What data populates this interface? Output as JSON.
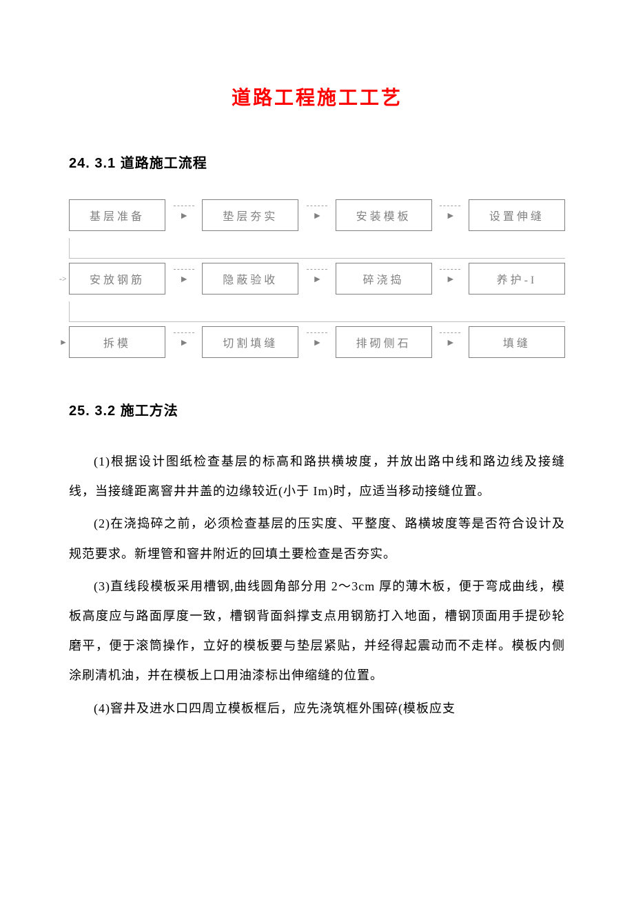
{
  "title": "道路工程施工工艺",
  "section1": {
    "number": "24.",
    "label": "3.1 道路施工流程"
  },
  "section2": {
    "number": "25.",
    "label": "3.2 施工方法"
  },
  "flowchart": {
    "rows": [
      {
        "startMarker": "",
        "boxes": [
          "基层准备",
          "垫层夯实",
          "安装模板",
          "设置伸缝"
        ]
      },
      {
        "startMarker": "->",
        "boxes": [
          "安放钢筋",
          "隐蔽验收",
          "碎浇捣",
          "养护-I"
        ]
      },
      {
        "startMarker": "►",
        "boxes": [
          "拆模",
          "切割填缝",
          "排砌侧石",
          "填缝"
        ]
      }
    ],
    "box_border_color": "#808080",
    "box_text_color": "#808080",
    "dash_color": "#a0a0a0"
  },
  "paragraphs": {
    "p1": "(1)根据设计图纸检查基层的标高和路拱横坡度，并放出路中线和路边线及接缝线，当接缝距离窨井井盖的边缘较近(小于 Im)时，应适当移动接缝位置。",
    "p2": "(2)在浇捣碎之前，必须检查基层的压实度、平整度、路横坡度等是否符合设计及规范要求。新埋管和窨井附近的回填土要检查是否夯实。",
    "p3": "(3)直线段模板采用槽钢,曲线圆角部分用 2～3cm 厚的薄木板，便于弯成曲线，模板高度应与路面厚度一致，槽钢背面斜撑支点用钢筋打入地面，槽钢顶面用手提砂轮磨平，便于滚筒操作，立好的模板要与垫层紧贴，并经得起震动而不走样。模板内侧涂刷清机油，并在模板上口用油漆标出伸缩缝的位置。",
    "p4": "(4)窨井及进水口四周立模板框后，应先浇筑框外围碎(模板应支"
  },
  "colors": {
    "title_color": "#ff0000",
    "text_color": "#000000",
    "background": "#ffffff"
  }
}
